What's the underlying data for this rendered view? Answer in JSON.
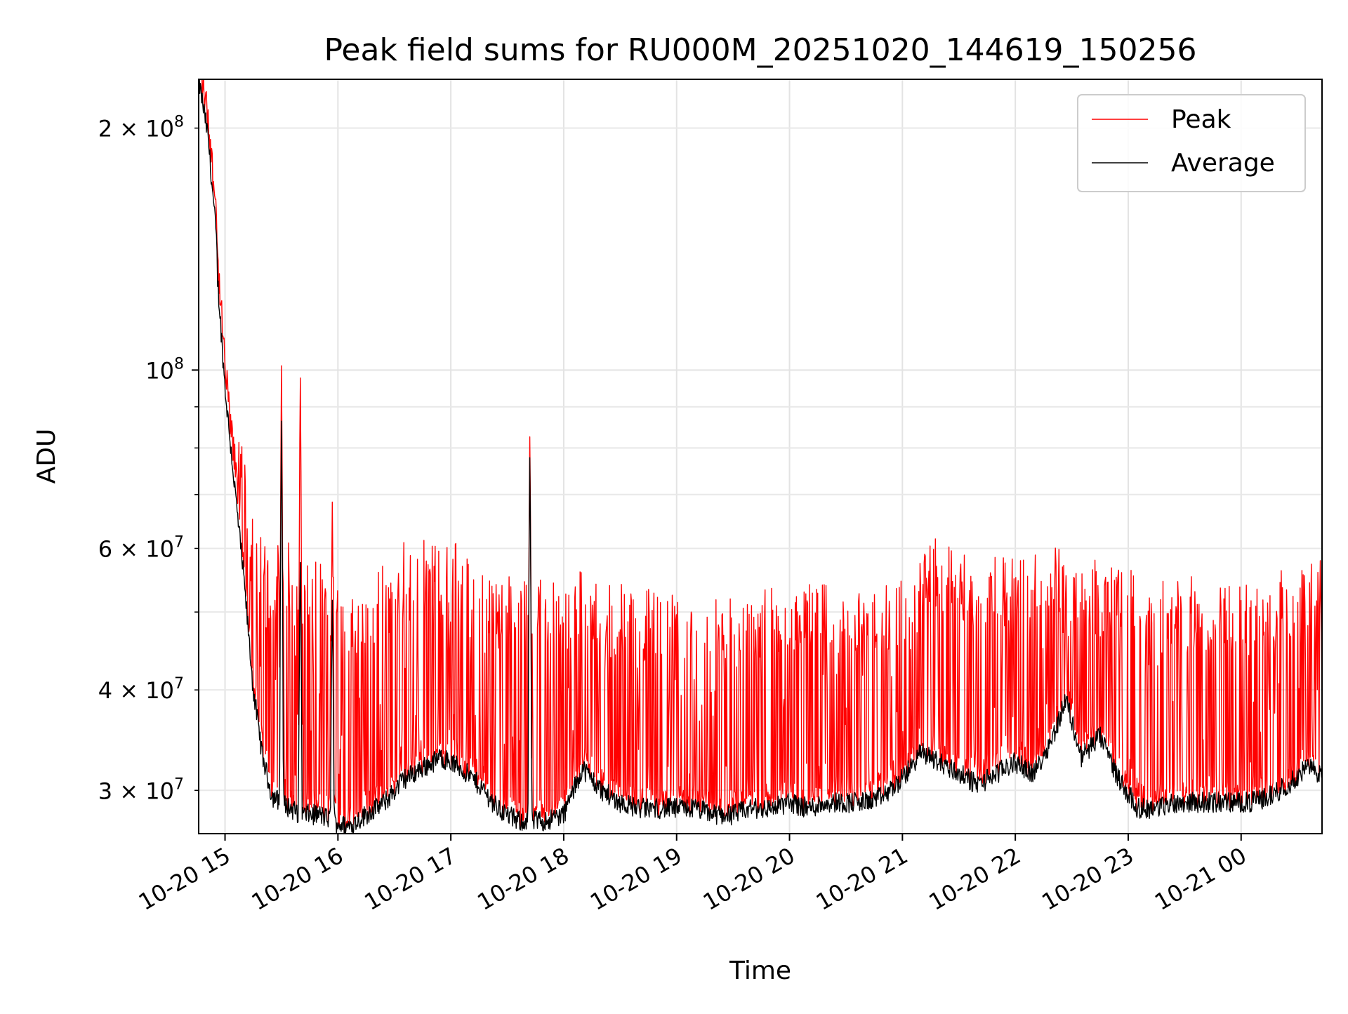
{
  "chart_data": {
    "type": "line",
    "title": "Peak field sums for RU000M_20251020_144619_150256",
    "xlabel": "Time",
    "ylabel": "ADU",
    "x_axis": {
      "kind": "datetime",
      "range": [
        "2025-10-20 14:46",
        "2025-10-21 00:43"
      ],
      "ticks": [
        {
          "value": "2025-10-20 15:00",
          "label": "10-20 15"
        },
        {
          "value": "2025-10-20 16:00",
          "label": "10-20 16"
        },
        {
          "value": "2025-10-20 17:00",
          "label": "10-20 17"
        },
        {
          "value": "2025-10-20 18:00",
          "label": "10-20 18"
        },
        {
          "value": "2025-10-20 19:00",
          "label": "10-20 19"
        },
        {
          "value": "2025-10-20 20:00",
          "label": "10-20 20"
        },
        {
          "value": "2025-10-20 21:00",
          "label": "10-20 21"
        },
        {
          "value": "2025-10-20 22:00",
          "label": "10-20 22"
        },
        {
          "value": "2025-10-20 23:00",
          "label": "10-20 23"
        },
        {
          "value": "2025-10-21 00:00",
          "label": "10-21 00"
        }
      ]
    },
    "y_axis": {
      "scale": "log",
      "range": [
        26500000,
        230000000
      ],
      "major_ticks": [
        {
          "value": 100000000,
          "mantissa": "",
          "exp": "8"
        }
      ],
      "minor_labeled_ticks": [
        {
          "value": 200000000,
          "mantissa": "2",
          "exp": "8"
        },
        {
          "value": 60000000,
          "mantissa": "6",
          "exp": "7"
        },
        {
          "value": 40000000,
          "mantissa": "4",
          "exp": "7"
        },
        {
          "value": 30000000,
          "mantissa": "3",
          "exp": "7"
        }
      ],
      "minor_unlabeled_ticks": [
        50000000,
        70000000,
        80000000,
        90000000
      ]
    },
    "grid": true,
    "legend": {
      "position": "top-right"
    },
    "series": [
      {
        "name": "Peak",
        "color": "#ff0000",
        "x": [
          "2025-10-20 14:46",
          "2025-10-20 14:51",
          "2025-10-20 14:55",
          "2025-10-20 14:56",
          "2025-10-20 15:00",
          "2025-10-20 15:05",
          "2025-10-20 15:10",
          "2025-10-20 15:15",
          "2025-10-20 15:20",
          "2025-10-20 15:25",
          "2025-10-20 15:30",
          "2025-10-20 15:35",
          "2025-10-20 15:40",
          "2025-10-20 15:45",
          "2025-10-20 15:50",
          "2025-10-20 15:57",
          "2025-10-20 16:05",
          "2025-10-20 16:15",
          "2025-10-20 16:25",
          "2025-10-20 16:35",
          "2025-10-20 16:45",
          "2025-10-20 16:55",
          "2025-10-20 17:05",
          "2025-10-20 17:15",
          "2025-10-20 17:25",
          "2025-10-20 17:35",
          "2025-10-20 17:42",
          "2025-10-20 17:50",
          "2025-10-20 18:00",
          "2025-10-20 18:10",
          "2025-10-20 18:20",
          "2025-10-20 18:30",
          "2025-10-20 18:40",
          "2025-10-20 18:50",
          "2025-10-20 19:00",
          "2025-10-20 19:10",
          "2025-10-20 19:20",
          "2025-10-20 19:30",
          "2025-10-20 19:40",
          "2025-10-20 19:50",
          "2025-10-20 20:00",
          "2025-10-20 20:10",
          "2025-10-20 20:20",
          "2025-10-20 20:30",
          "2025-10-20 20:40",
          "2025-10-20 20:50",
          "2025-10-20 21:00",
          "2025-10-20 21:10",
          "2025-10-20 21:20",
          "2025-10-20 21:30",
          "2025-10-20 21:40",
          "2025-10-20 21:50",
          "2025-10-20 22:00",
          "2025-10-20 22:10",
          "2025-10-20 22:20",
          "2025-10-20 22:27",
          "2025-10-20 22:35",
          "2025-10-20 22:45",
          "2025-10-20 22:55",
          "2025-10-20 23:05",
          "2025-10-20 23:15",
          "2025-10-20 23:25",
          "2025-10-20 23:35",
          "2025-10-20 23:45",
          "2025-10-20 23:55",
          "2025-10-21 00:05",
          "2025-10-21 00:15",
          "2025-10-21 00:25",
          "2025-10-21 00:35",
          "2025-10-21 00:43"
        ],
        "y": [
          230000000,
          200000000,
          160000000,
          140000000,
          105000000,
          90000000,
          75000000,
          64000000,
          58000000,
          56000000,
          60000000,
          58000000,
          54000000,
          56000000,
          55000000,
          53000000,
          52000000,
          52000000,
          55000000,
          60000000,
          59000000,
          58000000,
          58000000,
          57000000,
          53000000,
          53000000,
          52000000,
          53000000,
          52000000,
          55000000,
          52000000,
          52000000,
          51000000,
          51000000,
          50000000,
          51000000,
          51000000,
          50000000,
          51000000,
          51000000,
          51000000,
          52000000,
          52000000,
          51000000,
          51000000,
          52000000,
          53000000,
          56000000,
          60000000,
          58000000,
          56000000,
          56000000,
          56000000,
          57000000,
          58000000,
          59000000,
          56000000,
          55000000,
          55000000,
          53000000,
          52000000,
          52000000,
          53000000,
          52000000,
          52000000,
          52000000,
          53000000,
          54000000,
          56000000,
          56000000
        ]
      },
      {
        "name": "Average",
        "color": "#000000",
        "x": [
          "2025-10-20 14:46",
          "2025-10-20 14:51",
          "2025-10-20 14:55",
          "2025-10-20 14:56",
          "2025-10-20 15:00",
          "2025-10-20 15:05",
          "2025-10-20 15:10",
          "2025-10-20 15:15",
          "2025-10-20 15:20",
          "2025-10-20 15:25",
          "2025-10-20 15:30",
          "2025-10-20 15:35",
          "2025-10-20 15:40",
          "2025-10-20 15:45",
          "2025-10-20 15:50",
          "2025-10-20 15:57",
          "2025-10-20 16:05",
          "2025-10-20 16:15",
          "2025-10-20 16:25",
          "2025-10-20 16:35",
          "2025-10-20 16:45",
          "2025-10-20 16:55",
          "2025-10-20 17:05",
          "2025-10-20 17:15",
          "2025-10-20 17:25",
          "2025-10-20 17:35",
          "2025-10-20 17:42",
          "2025-10-20 17:50",
          "2025-10-20 18:00",
          "2025-10-20 18:10",
          "2025-10-20 18:20",
          "2025-10-20 18:30",
          "2025-10-20 18:40",
          "2025-10-20 18:50",
          "2025-10-20 19:00",
          "2025-10-20 19:10",
          "2025-10-20 19:20",
          "2025-10-20 19:30",
          "2025-10-20 19:40",
          "2025-10-20 19:50",
          "2025-10-20 20:00",
          "2025-10-20 20:10",
          "2025-10-20 20:20",
          "2025-10-20 20:30",
          "2025-10-20 20:40",
          "2025-10-20 20:50",
          "2025-10-20 21:00",
          "2025-10-20 21:10",
          "2025-10-20 21:20",
          "2025-10-20 21:30",
          "2025-10-20 21:40",
          "2025-10-20 21:50",
          "2025-10-20 22:00",
          "2025-10-20 22:10",
          "2025-10-20 22:20",
          "2025-10-20 22:27",
          "2025-10-20 22:35",
          "2025-10-20 22:45",
          "2025-10-20 22:55",
          "2025-10-20 23:05",
          "2025-10-20 23:15",
          "2025-10-20 23:25",
          "2025-10-20 23:35",
          "2025-10-20 23:45",
          "2025-10-20 23:55",
          "2025-10-21 00:05",
          "2025-10-21 00:15",
          "2025-10-21 00:25",
          "2025-10-21 00:35",
          "2025-10-21 00:43"
        ],
        "y": [
          230000000,
          195000000,
          150000000,
          130000000,
          95000000,
          72000000,
          55000000,
          40000000,
          33000000,
          29500000,
          29000000,
          28500000,
          28000000,
          28000000,
          28000000,
          27500000,
          27000000,
          28000000,
          29000000,
          31000000,
          32000000,
          33000000,
          32000000,
          30500000,
          28500000,
          27500000,
          27500000,
          27500000,
          28000000,
          32000000,
          30000000,
          29000000,
          28500000,
          28500000,
          28500000,
          28500000,
          28000000,
          28000000,
          28500000,
          28500000,
          29000000,
          28500000,
          29000000,
          29000000,
          29000000,
          29500000,
          31000000,
          33500000,
          32500000,
          31500000,
          30500000,
          31500000,
          32500000,
          31500000,
          35000000,
          39000000,
          33000000,
          35000000,
          31000000,
          28500000,
          28500000,
          29000000,
          29000000,
          29000000,
          29000000,
          29000000,
          29500000,
          30500000,
          32000000,
          31500000
        ]
      }
    ],
    "spikes": [
      {
        "x": "2025-10-20 14:55",
        "peak": 165000000,
        "average": 150000000
      },
      {
        "x": "2025-10-20 15:30",
        "peak": 102000000,
        "average": 87000000
      },
      {
        "x": "2025-10-20 15:40",
        "peak": 101000000,
        "average": 59000000
      },
      {
        "x": "2025-10-20 15:57",
        "peak": 69000000,
        "average": 52000000
      },
      {
        "x": "2025-10-20 17:42",
        "peak": 85000000,
        "average": 80000000
      }
    ]
  }
}
